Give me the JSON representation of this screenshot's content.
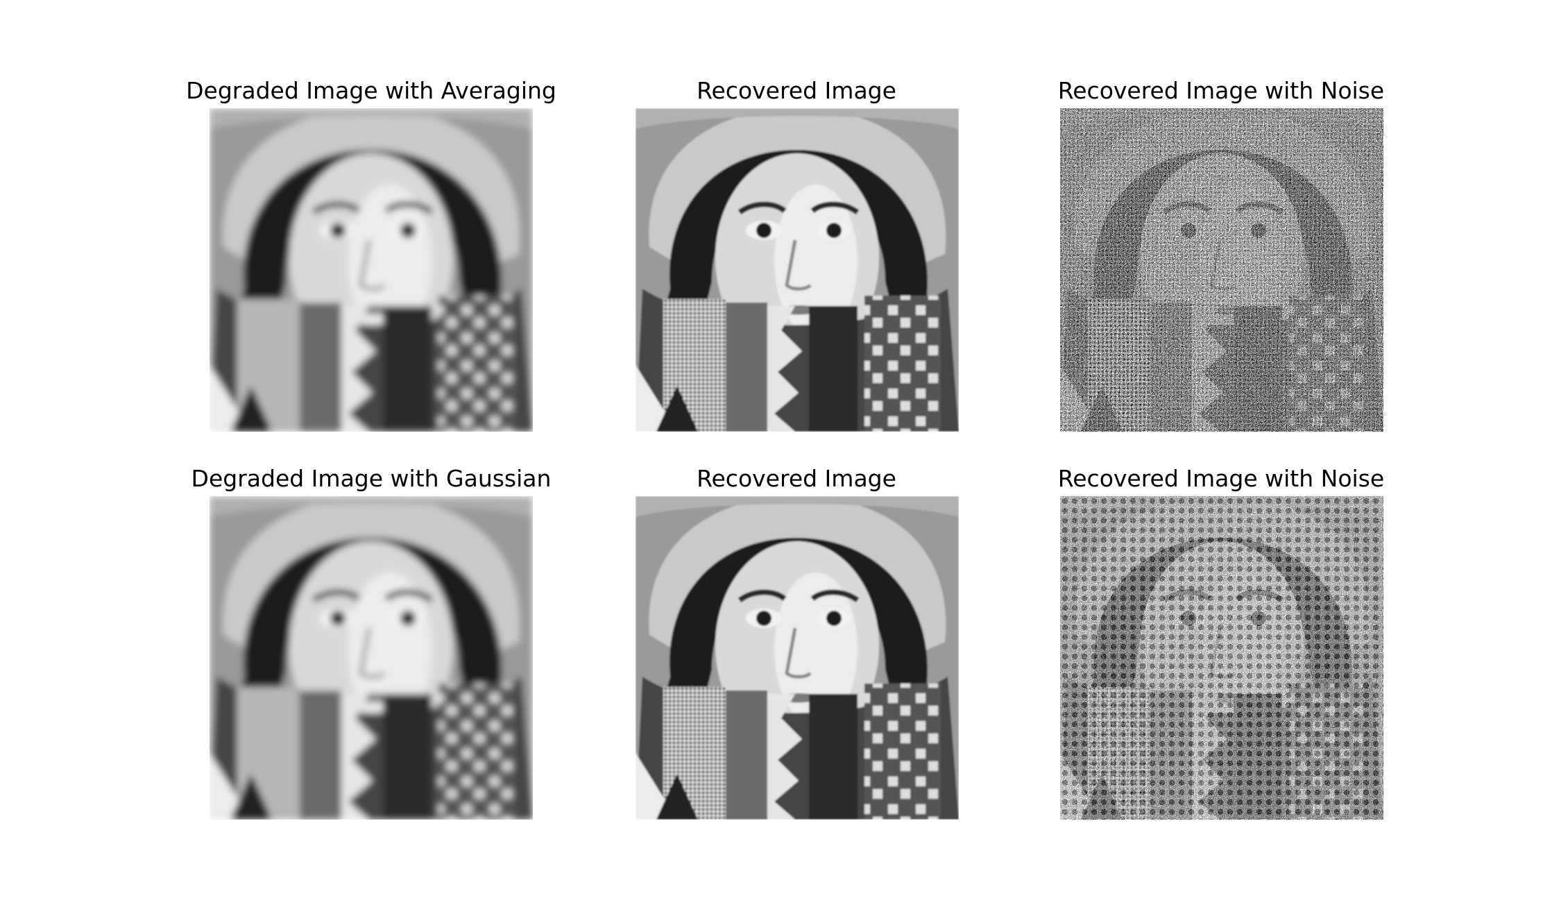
{
  "figure": {
    "panels": [
      {
        "title": "Degraded Image with Averaging",
        "variant": "blur"
      },
      {
        "title": "Recovered Image",
        "variant": "sharp"
      },
      {
        "title": "Recovered Image with Noise",
        "variant": "noise-fine"
      },
      {
        "title": "Degraded Image with Gaussian",
        "variant": "blur"
      },
      {
        "title": "Recovered Image",
        "variant": "sharp"
      },
      {
        "title": "Recovered Image with Noise",
        "variant": "noise-grid"
      }
    ]
  }
}
